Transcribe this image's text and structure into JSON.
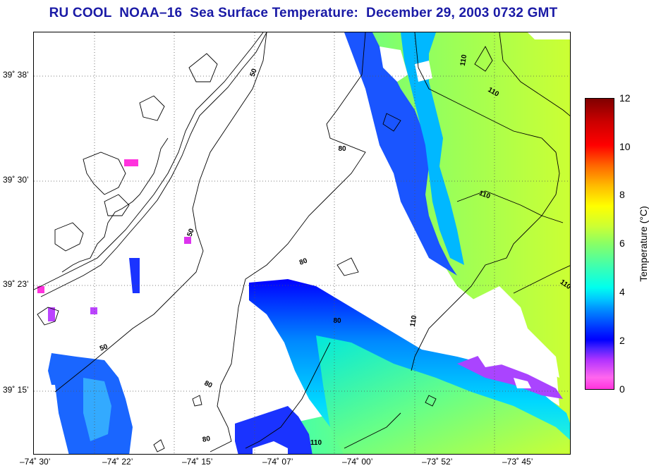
{
  "title": "RU COOL  NOAA–16  Sea Surface Temperature:  December 29, 2003 0732 GMT",
  "map": {
    "lat_labels": [
      "39˚ 38’",
      "39˚ 30’",
      "39˚ 23’",
      "39˚ 15’"
    ],
    "lon_labels": [
      "–74˚ 30’",
      "–74˚ 22’",
      "–74˚ 15’",
      "–74˚ 07’",
      "–74˚ 00’",
      "–73˚ 52’",
      "–73˚ 45’"
    ],
    "contour_labels": [
      "50",
      "50",
      "50",
      "80",
      "80",
      "80",
      "80",
      "80",
      "110",
      "110",
      "110",
      "110",
      "110",
      "110"
    ],
    "grid": true
  },
  "colorbar": {
    "title": "Temperature (°C)",
    "ticks": [
      "12",
      "10",
      "8",
      "6",
      "4",
      "2",
      "0"
    ],
    "min": 0,
    "max": 12
  },
  "colors": {
    "title": "#1a1aa6",
    "land": "#ffffff",
    "coastline": "#000000"
  }
}
